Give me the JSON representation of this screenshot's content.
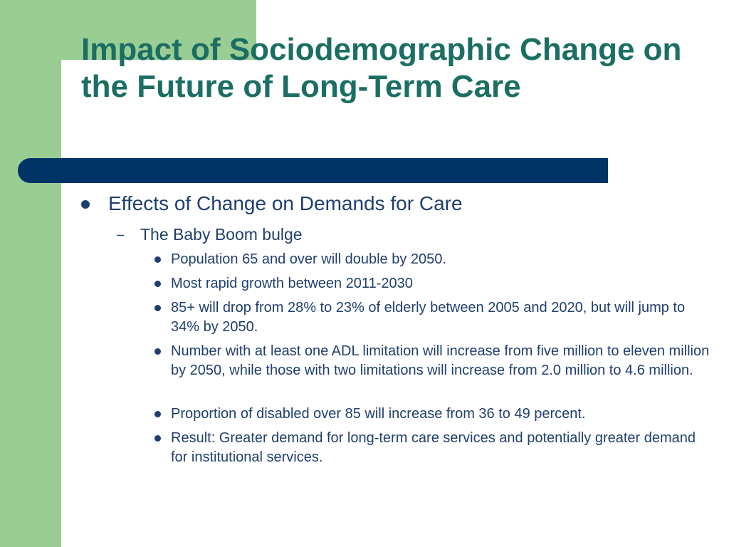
{
  "slide": {
    "title": "Impact of Sociodemographic Change on the Future of Long-Term Care",
    "bullet_level1": "Effects of Change on Demands for Care",
    "bullet_level2": "The Baby Boom bulge",
    "bullets_level3": [
      "Population 65 and over will double by 2050.",
      "Most rapid growth between 2011-2030",
      "85+ will drop from 28% to 23% of elderly between 2005 and 2020, but will jump to 34% by 2050.",
      "Number with at least one ADL limitation will increase from five million to eleven million by 2050, while those with two limitations will increase from 2.0 million to 4.6 million.",
      "Proportion of disabled over 85 will increase from 36 to 49 percent.",
      "Result: Greater demand for long-term care services and potentially greater demand for institutional services."
    ]
  },
  "colors": {
    "accent_green": "#9acd93",
    "title_teal": "#1b6e63",
    "navy_bar": "#003366",
    "body_text": "#1f3f6e"
  }
}
